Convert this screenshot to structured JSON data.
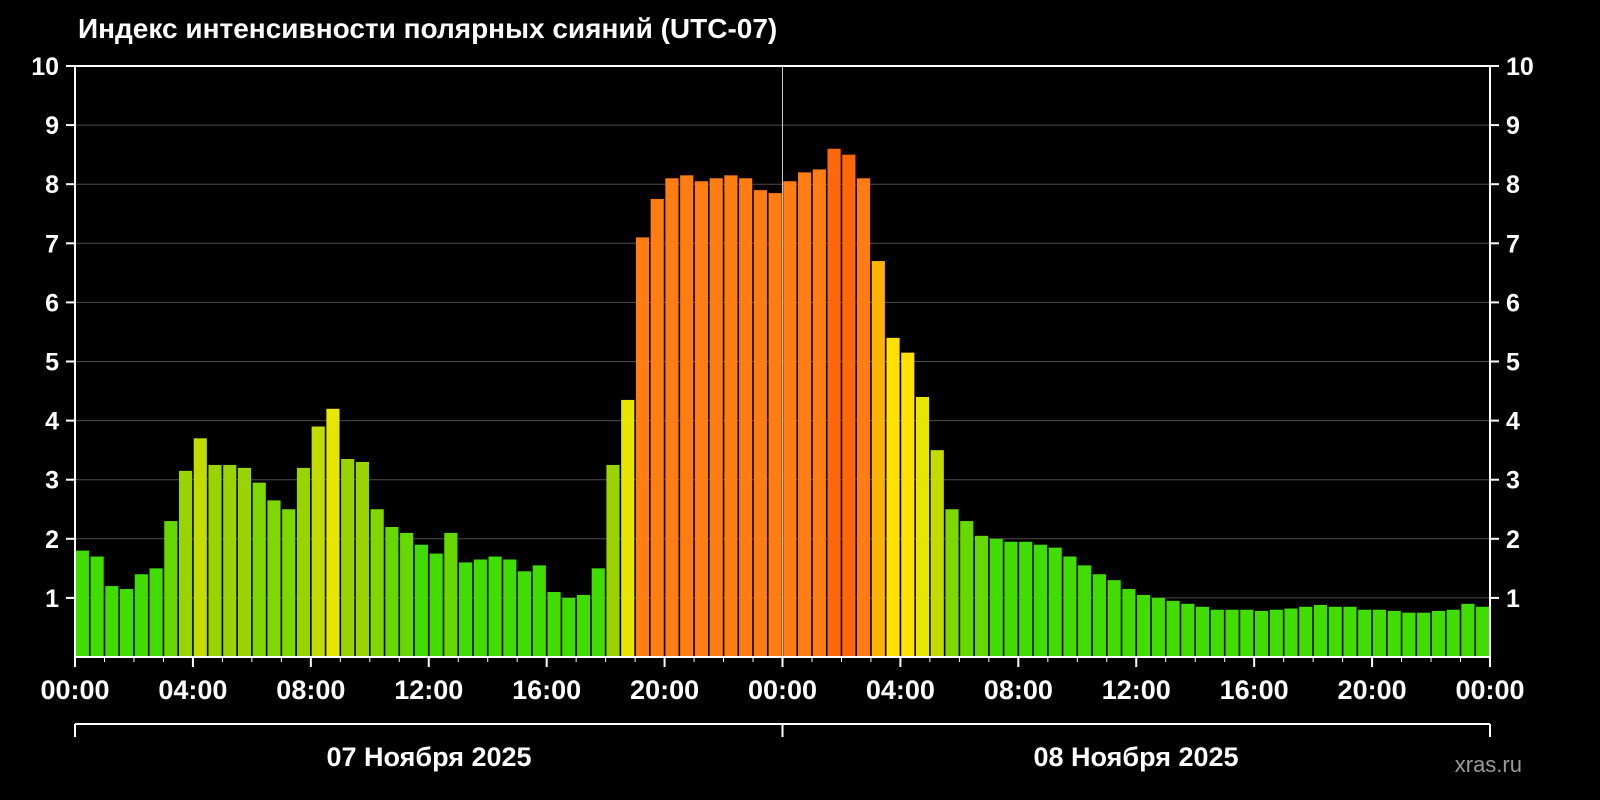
{
  "page": {
    "background": "#000000"
  },
  "chart_data": {
    "type": "bar",
    "title": "Индекс интенсивности полярных сияний (UTC-07)",
    "xlabel": "",
    "ylabel": "",
    "ylim": [
      0,
      10
    ],
    "y_ticks": [
      1,
      2,
      3,
      4,
      5,
      6,
      7,
      8,
      9,
      10
    ],
    "x_tick_hours": [
      0,
      4,
      8,
      12,
      16,
      20,
      24,
      28,
      32,
      36,
      40,
      44,
      48
    ],
    "x_tick_labels": [
      "00:00",
      "04:00",
      "08:00",
      "12:00",
      "16:00",
      "20:00",
      "00:00",
      "04:00",
      "08:00",
      "12:00",
      "16:00",
      "20:00",
      "00:00"
    ],
    "interval_minutes": 30,
    "grid": true,
    "legend": false,
    "dates": [
      "07 Ноября 2025",
      "08 Ноября 2025"
    ],
    "values": [
      1.8,
      1.7,
      1.2,
      1.15,
      1.4,
      1.5,
      2.3,
      3.15,
      3.7,
      3.25,
      3.25,
      3.2,
      2.95,
      2.65,
      2.5,
      3.2,
      3.9,
      4.2,
      3.35,
      3.3,
      2.5,
      2.2,
      2.1,
      1.9,
      1.75,
      2.1,
      1.6,
      1.65,
      1.7,
      1.65,
      1.45,
      1.55,
      1.1,
      1.0,
      1.05,
      1.5,
      3.25,
      4.35,
      7.1,
      7.75,
      8.1,
      8.15,
      8.05,
      8.1,
      8.15,
      8.1,
      7.9,
      7.85,
      8.05,
      8.2,
      8.25,
      8.6,
      8.5,
      8.1,
      6.7,
      5.4,
      5.15,
      4.4,
      3.5,
      2.5,
      2.3,
      2.05,
      2.0,
      1.95,
      1.95,
      1.9,
      1.85,
      1.7,
      1.55,
      1.4,
      1.3,
      1.15,
      1.05,
      1.0,
      0.95,
      0.9,
      0.85,
      0.8,
      0.8,
      0.8,
      0.78,
      0.8,
      0.82,
      0.85,
      0.88,
      0.85,
      0.85,
      0.8,
      0.8,
      0.78,
      0.75,
      0.75,
      0.78,
      0.8,
      0.9,
      0.85
    ],
    "color_scale": [
      {
        "max": 2.0,
        "color": "#42dd00"
      },
      {
        "max": 2.45,
        "color": "#65d800"
      },
      {
        "max": 2.95,
        "color": "#7ed700"
      },
      {
        "max": 3.45,
        "color": "#9ad400"
      },
      {
        "max": 4.0,
        "color": "#c3dc00"
      },
      {
        "max": 4.6,
        "color": "#e6e600"
      },
      {
        "max": 5.6,
        "color": "#ffe000"
      },
      {
        "max": 6.9,
        "color": "#ffb200"
      },
      {
        "max": 8.3,
        "color": "#ff7d12"
      },
      {
        "max": 10.0,
        "color": "#ff6708"
      }
    ],
    "grid_color": "#4c4c4c",
    "day_divider_color": "#c8c8c8",
    "axis_color": "#ffffff",
    "watermark": "xras.ru"
  }
}
